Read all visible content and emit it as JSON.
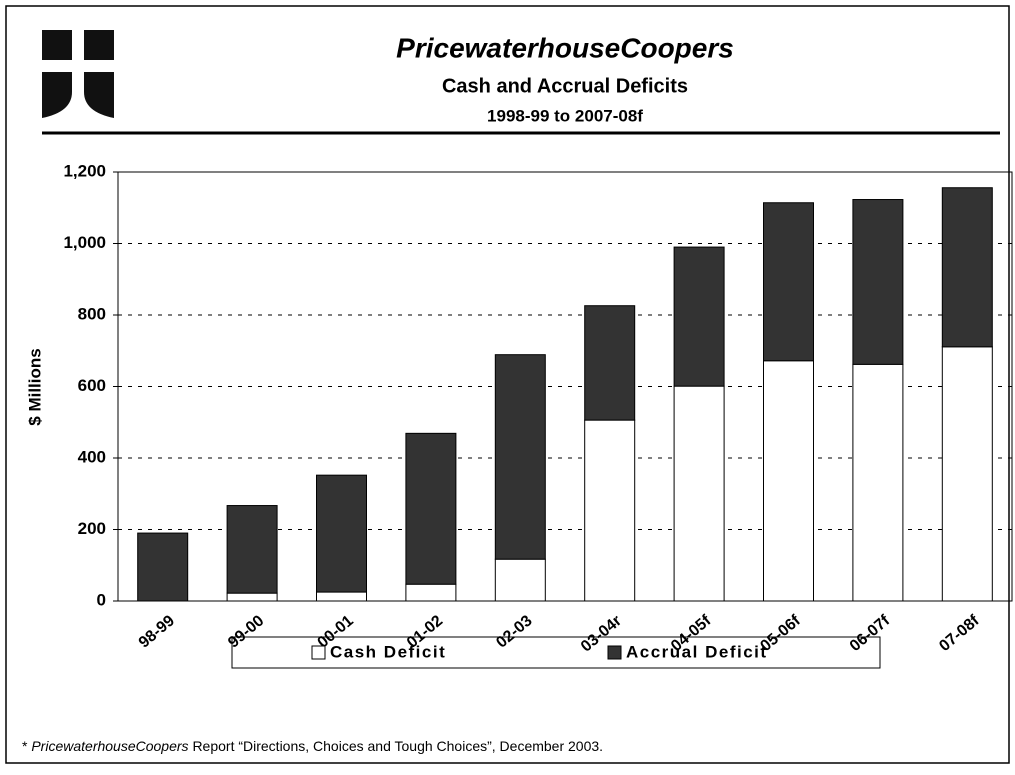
{
  "chart_data": {
    "type": "stacked_bar",
    "brand": "PricewaterhouseCoopers",
    "title": "Cash and Accrual Deficits",
    "subtitle": "1998-99 to 2007-08f",
    "y_label": "$ Millions",
    "categories": [
      "98-99",
      "99-00",
      "00-01",
      "01-02",
      "02-03",
      "03-04r",
      "04-05f",
      "05-06f",
      "06-07f",
      "07-08f"
    ],
    "series": [
      {
        "name": "Cash Deficit",
        "color": "#ffffff",
        "values": [
          0,
          22,
          25,
          47,
          117,
          506,
          601,
          672,
          662,
          711
        ]
      },
      {
        "name": "Accrual Deficit",
        "color": "#333333",
        "values": [
          190,
          245,
          327,
          422,
          572,
          320,
          389,
          442,
          461,
          445
        ]
      }
    ],
    "ylim": [
      0,
      1200
    ],
    "yticks": [
      0,
      200,
      400,
      600,
      800,
      {
        "value": 1000,
        "label": "1,000"
      },
      {
        "value": 1200,
        "label": "1,200"
      }
    ],
    "grid": true,
    "legend": "bottom",
    "footnote": {
      "lead": "*",
      "source": "PricewaterhouseCoopers",
      "text": "Report “Directions, Choices and Tough Choices”, December 2003."
    }
  }
}
